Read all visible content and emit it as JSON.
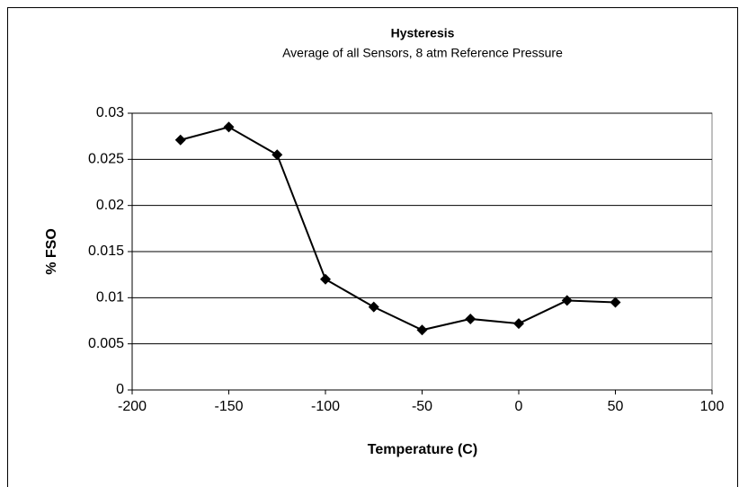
{
  "chart_data": {
    "type": "line",
    "title": "Hysteresis",
    "subtitle": "Average of all Sensors, 8 atm Reference Pressure",
    "x_label": "Temperature (C)",
    "y_label": "% FSO",
    "x": [
      -175,
      -150,
      -125,
      -100,
      -75,
      -50,
      -25,
      0,
      25,
      50
    ],
    "series": [
      {
        "name": "Hysteresis",
        "color": "#000000",
        "values": [
          0.0271,
          0.0285,
          0.0255,
          0.012,
          0.009,
          0.0065,
          0.0077,
          0.0072,
          0.0097,
          0.0095
        ]
      }
    ],
    "xlim": [
      -200,
      100
    ],
    "xticks": [
      -200,
      -150,
      -100,
      -50,
      0,
      50,
      100
    ],
    "ylim": [
      0,
      0.03
    ],
    "yticks": [
      0,
      0.005,
      0.01,
      0.015,
      0.02,
      0.025,
      0.03
    ],
    "grid": true
  }
}
